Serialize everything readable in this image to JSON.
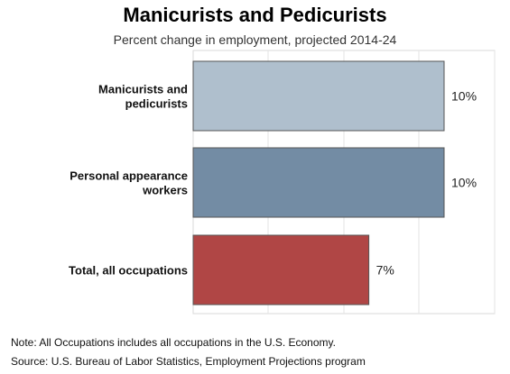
{
  "chart_data": {
    "type": "bar",
    "orientation": "horizontal",
    "title": "Manicurists and Pedicurists",
    "subtitle": "Percent change in employment, projected 2014-24",
    "categories": [
      [
        "Manicurists and",
        "pedicurists"
      ],
      [
        "Personal appearance",
        "workers"
      ],
      [
        "Total, all occupations"
      ]
    ],
    "values": [
      10,
      10,
      7
    ],
    "value_labels": [
      "10%",
      "10%",
      "7%"
    ],
    "colors": [
      "#afbfcd",
      "#738ca4",
      "#b04645"
    ],
    "xlim": [
      0,
      10
    ],
    "grid": true,
    "legend": "none"
  },
  "notes": {
    "note": "Note: All Occupations includes all occupations in the U.S. Economy.",
    "source": "Source: U.S. Bureau of Labor Statistics, Employment Projections program"
  }
}
